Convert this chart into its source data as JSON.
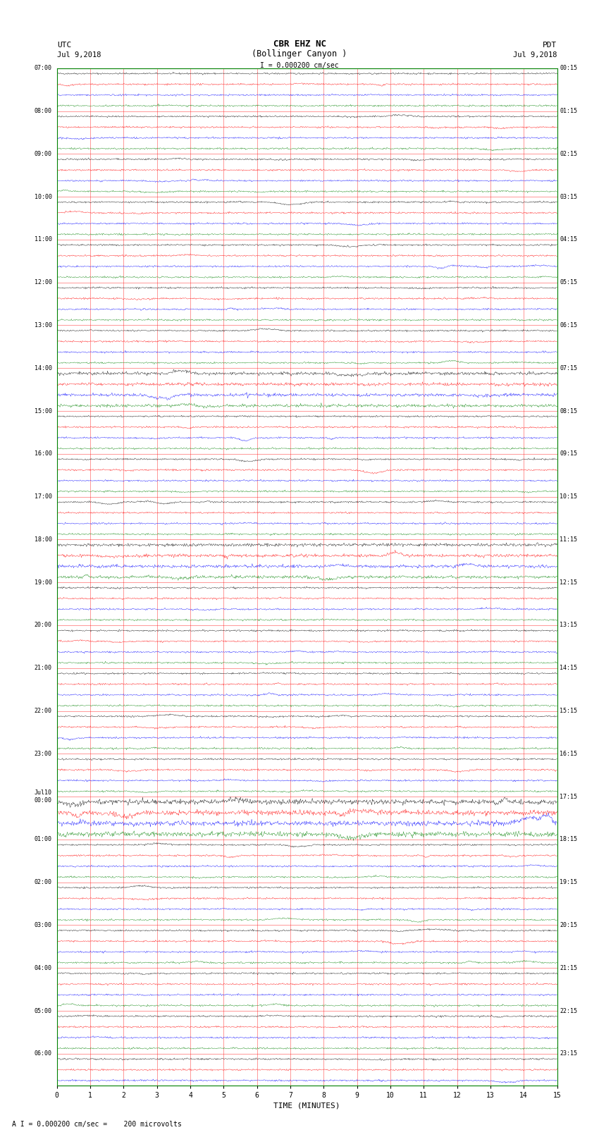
{
  "title_line1": "CBR EHZ NC",
  "title_line2": "(Bollinger Canyon )",
  "scale_label": "I = 0.000200 cm/sec",
  "footer_label": "A I = 0.000200 cm/sec =    200 microvolts",
  "utc_label": "UTC",
  "utc_date": "Jul 9,2018",
  "pdt_label": "PDT",
  "pdt_date": "Jul 9,2018",
  "xlabel": "TIME (MINUTES)",
  "bg_color": "#ffffff",
  "trace_colors": [
    "black",
    "red",
    "blue",
    "green"
  ],
  "grid_color": "#ff0000",
  "axis_color": "#008000",
  "left_times_utc": [
    "07:00",
    "",
    "",
    "",
    "08:00",
    "",
    "",
    "",
    "09:00",
    "",
    "",
    "",
    "10:00",
    "",
    "",
    "",
    "11:00",
    "",
    "",
    "",
    "12:00",
    "",
    "",
    "",
    "13:00",
    "",
    "",
    "",
    "14:00",
    "",
    "",
    "",
    "15:00",
    "",
    "",
    "",
    "16:00",
    "",
    "",
    "",
    "17:00",
    "",
    "",
    "",
    "18:00",
    "",
    "",
    "",
    "19:00",
    "",
    "",
    "",
    "20:00",
    "",
    "",
    "",
    "21:00",
    "",
    "",
    "",
    "22:00",
    "",
    "",
    "",
    "23:00",
    "",
    "",
    "",
    "Jul10\n00:00",
    "",
    "",
    "",
    "01:00",
    "",
    "",
    "",
    "02:00",
    "",
    "",
    "",
    "03:00",
    "",
    "",
    "",
    "04:00",
    "",
    "",
    "",
    "05:00",
    "",
    "",
    "",
    "06:00",
    "",
    ""
  ],
  "right_times_pdt": [
    "00:15",
    "",
    "",
    "",
    "01:15",
    "",
    "",
    "",
    "02:15",
    "",
    "",
    "",
    "03:15",
    "",
    "",
    "",
    "04:15",
    "",
    "",
    "",
    "05:15",
    "",
    "",
    "",
    "06:15",
    "",
    "",
    "",
    "07:15",
    "",
    "",
    "",
    "08:15",
    "",
    "",
    "",
    "09:15",
    "",
    "",
    "",
    "10:15",
    "",
    "",
    "",
    "11:15",
    "",
    "",
    "",
    "12:15",
    "",
    "",
    "",
    "13:15",
    "",
    "",
    "",
    "14:15",
    "",
    "",
    "",
    "15:15",
    "",
    "",
    "",
    "16:15",
    "",
    "",
    "",
    "17:15",
    "",
    "",
    "",
    "18:15",
    "",
    "",
    "",
    "19:15",
    "",
    "",
    "",
    "20:15",
    "",
    "",
    "",
    "21:15",
    "",
    "",
    "",
    "22:15",
    "",
    "",
    "",
    "23:15",
    "",
    ""
  ],
  "n_rows": 95,
  "n_traces_per_row": 4,
  "minutes": 15,
  "noise_scale": 0.15,
  "high_noise_rows": [
    68,
    69,
    70,
    71
  ],
  "high_noise_scale": 0.45,
  "medium_noise_rows": [
    28,
    29,
    30,
    31,
    44,
    45,
    46,
    47
  ],
  "medium_noise_scale": 0.28,
  "figsize": [
    8.5,
    16.13
  ],
  "dpi": 100
}
